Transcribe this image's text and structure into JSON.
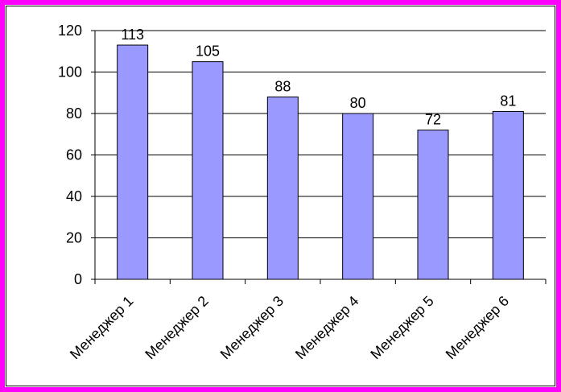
{
  "chart_data": {
    "type": "bar",
    "categories": [
      "Менеджер 1",
      "Менеджер 2",
      "Менеджер 3",
      "Менеджер 4",
      "Менеджер 5",
      "Менеджер 6"
    ],
    "values": [
      113,
      105,
      88,
      80,
      72,
      81
    ],
    "color": "#9999ff",
    "ylim": [
      0,
      120
    ],
    "yticks": [
      0,
      20,
      40,
      60,
      80,
      100,
      120
    ],
    "grid": true
  }
}
